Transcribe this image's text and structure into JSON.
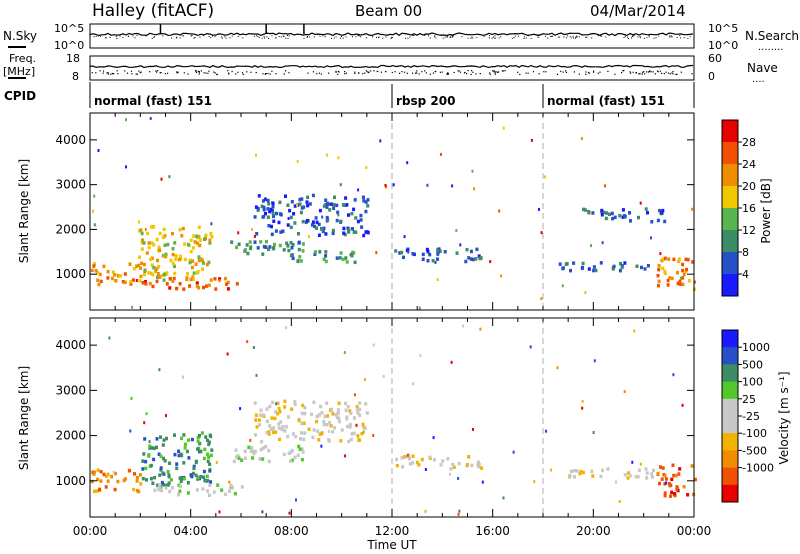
{
  "header": {
    "station": "Halley (fitACF)",
    "beam": "Beam 00",
    "date": "04/Mar/2014"
  },
  "strip_labels": {
    "nsky": "N.Sky",
    "nsearch": "N.Search",
    "nsearch_dots": "........",
    "freq": "Freq.",
    "freq_unit": "[MHz]",
    "nave": "Nave",
    "nave_dots": "....",
    "cpid": "CPID",
    "noise_ticks_left": [
      "10^5",
      "10^0"
    ],
    "noise_ticks_right": [
      "10^5",
      "10^0"
    ],
    "freq_ticks": [
      "18",
      "8"
    ],
    "nave_ticks": [
      "60",
      "0"
    ]
  },
  "cpid_segments": [
    {
      "label": "normal (fast) 151",
      "start_hour": 0
    },
    {
      "label": "rbsp 200",
      "start_hour": 12
    },
    {
      "label": "normal (fast) 151",
      "start_hour": 18
    }
  ],
  "colors": {
    "power": [
      "#1a1aff",
      "#2850c8",
      "#3c8c64",
      "#5ab450",
      "#f0c800",
      "#f08c00",
      "#f05000",
      "#e60000"
    ],
    "velocity": [
      "#e60000",
      "#f05000",
      "#f08c00",
      "#f0b400",
      "#c8c8c8",
      "#c8c8c8",
      "#50c828",
      "#3c8c64",
      "#2850c8",
      "#1a1aff"
    ]
  },
  "chart_data": [
    {
      "type": "heatmap",
      "title": "Power",
      "xlabel": "",
      "ylabel": "Slant Range [km]",
      "x_range_hours": [
        0,
        24
      ],
      "ylim": [
        200,
        4600
      ],
      "y_ticks": [
        "1000",
        "2000",
        "3000",
        "4000"
      ],
      "colorbar": {
        "label": "Power [dB]",
        "ticks": [
          "4",
          "8",
          "12",
          "16",
          "20",
          "24",
          "28"
        ],
        "range": [
          0,
          32
        ]
      },
      "features": [
        {
          "kind": "echo",
          "t0": 0.0,
          "t1": 2.0,
          "r0": 800,
          "r1": 1300,
          "level": 5
        },
        {
          "kind": "echo",
          "t0": 1.9,
          "t1": 4.8,
          "r0": 900,
          "r1": 2100,
          "level": 4
        },
        {
          "kind": "echo",
          "t0": 2.0,
          "t1": 6.0,
          "r0": 700,
          "r1": 950,
          "level": 6
        },
        {
          "kind": "echo",
          "t0": 5.5,
          "t1": 8.5,
          "r0": 1450,
          "r1": 1800,
          "level": 2
        },
        {
          "kind": "echo",
          "t0": 6.5,
          "t1": 11.0,
          "r0": 1900,
          "r1": 2800,
          "level": 1
        },
        {
          "kind": "echo",
          "t0": 8.0,
          "t1": 10.5,
          "r0": 1300,
          "r1": 1600,
          "level": 2
        },
        {
          "kind": "echo",
          "t0": 12.0,
          "t1": 15.5,
          "r0": 1300,
          "r1": 1600,
          "level": 1
        },
        {
          "kind": "echo",
          "t0": 18.5,
          "t1": 22.5,
          "r0": 1100,
          "r1": 1300,
          "level": 1
        },
        {
          "kind": "echo",
          "t0": 19.5,
          "t1": 22.8,
          "r0": 2200,
          "r1": 2500,
          "level": 1
        },
        {
          "kind": "echo",
          "t0": 22.5,
          "t1": 24.0,
          "r0": 700,
          "r1": 1400,
          "level": 5
        }
      ]
    },
    {
      "type": "heatmap",
      "title": "Velocity",
      "xlabel": "Time UT",
      "ylabel": "Slant Range [km]",
      "x_range_hours": [
        0,
        24
      ],
      "x_ticks": [
        "00:00",
        "04:00",
        "08:00",
        "12:00",
        "16:00",
        "20:00",
        "00:00"
      ],
      "ylim": [
        200,
        4600
      ],
      "y_ticks": [
        "1000",
        "2000",
        "3000",
        "4000"
      ],
      "colorbar": {
        "label": "Velocity [m s⁻¹]",
        "ticks": [
          "1000",
          "500",
          "100",
          "25",
          "-25",
          "-100",
          "-500",
          "-1000"
        ]
      },
      "features": [
        {
          "kind": "echo",
          "t0": 0.0,
          "t1": 2.0,
          "r0": 800,
          "r1": 1300,
          "level": 2
        },
        {
          "kind": "echo",
          "t0": 1.9,
          "t1": 4.8,
          "r0": 900,
          "r1": 2100,
          "level": 7
        },
        {
          "kind": "echo",
          "t0": 2.5,
          "t1": 6.0,
          "r0": 700,
          "r1": 950,
          "level": 5
        },
        {
          "kind": "echo",
          "t0": 5.5,
          "t1": 8.5,
          "r0": 1450,
          "r1": 1800,
          "level": 5
        },
        {
          "kind": "echo",
          "t0": 6.5,
          "t1": 11.0,
          "r0": 1900,
          "r1": 2800,
          "level": 4
        },
        {
          "kind": "echo",
          "t0": 12.0,
          "t1": 15.5,
          "r0": 1300,
          "r1": 1600,
          "level": 4
        },
        {
          "kind": "echo",
          "t0": 18.5,
          "t1": 22.5,
          "r0": 1100,
          "r1": 1300,
          "level": 4
        },
        {
          "kind": "echo",
          "t0": 22.5,
          "t1": 24.0,
          "r0": 700,
          "r1": 1400,
          "level": 1
        }
      ]
    }
  ]
}
